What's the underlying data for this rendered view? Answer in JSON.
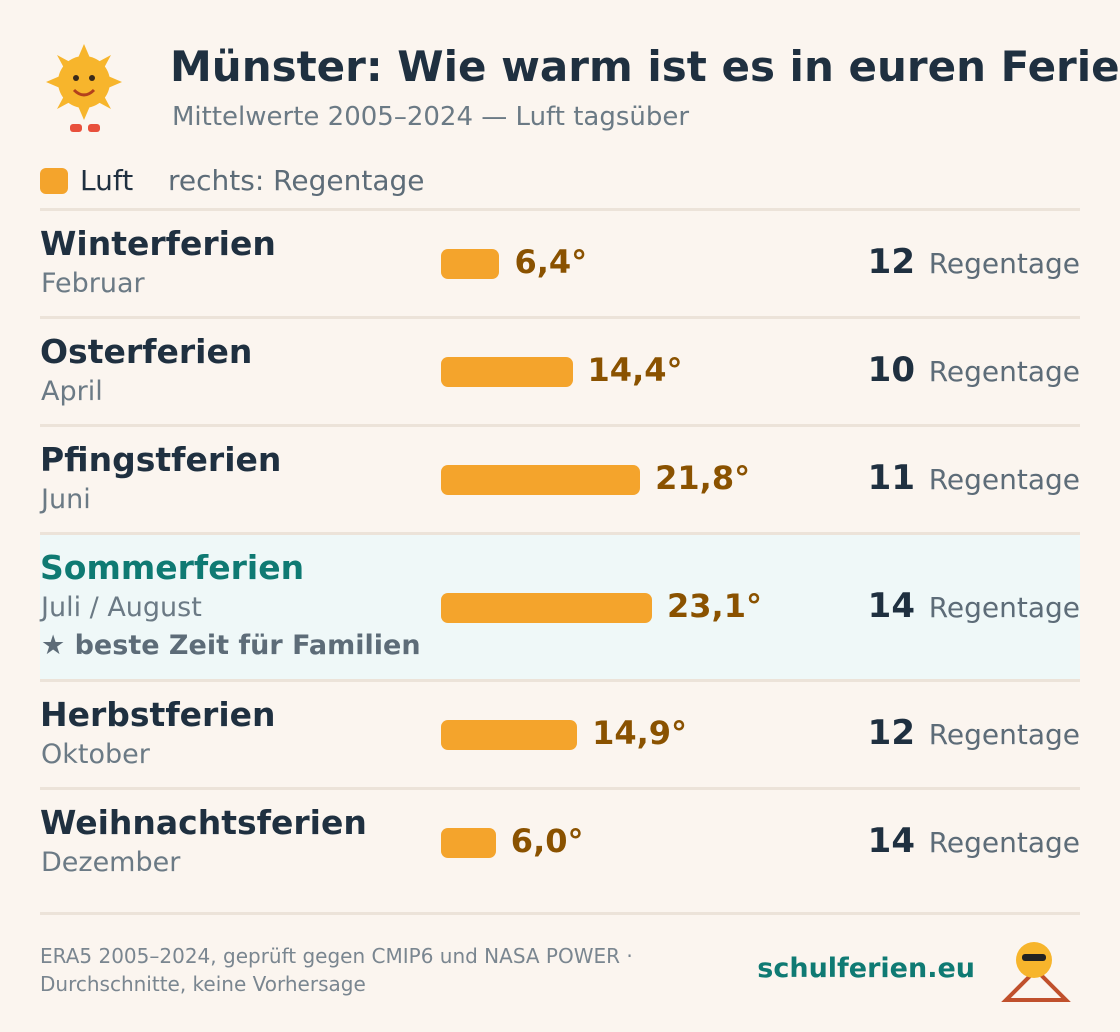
{
  "chart_data": {
    "type": "bar",
    "title": "Münster: Wie warm ist es in euren Ferien?",
    "subtitle": "Mittelwerte 2005–2024 — Luft tagsüber",
    "legend_note": "rechts: Regentage",
    "categories": [
      "Winterferien",
      "Osterferien",
      "Pfingstferien",
      "Sommerferien",
      "Herbstferien",
      "Weihnachtsferien"
    ],
    "category_sublabels": [
      "Februar",
      "April",
      "Juni",
      "Juli / August",
      "Oktober",
      "Dezember"
    ],
    "category_notes": [
      null,
      null,
      null,
      "★ beste Zeit für Familien",
      null,
      null
    ],
    "series": [
      {
        "name": "Luft",
        "color": "#f4a42c",
        "values": [
          6.4,
          14.4,
          21.8,
          23.1,
          14.9,
          6.0
        ],
        "value_labels": [
          "6,4°",
          "14,4°",
          "21,8°",
          "23,1°",
          "14,9°",
          "6,0°"
        ]
      }
    ],
    "rain_days": [
      12,
      10,
      11,
      14,
      12,
      14
    ],
    "rain_unit": "Regentage",
    "source": [
      "ERA5 2005–2024, geprüft gegen CMIP6 und NASA POWER ·",
      "Durchschnitte, keine Vorhersage"
    ],
    "brand": "schulferien.eu"
  }
}
